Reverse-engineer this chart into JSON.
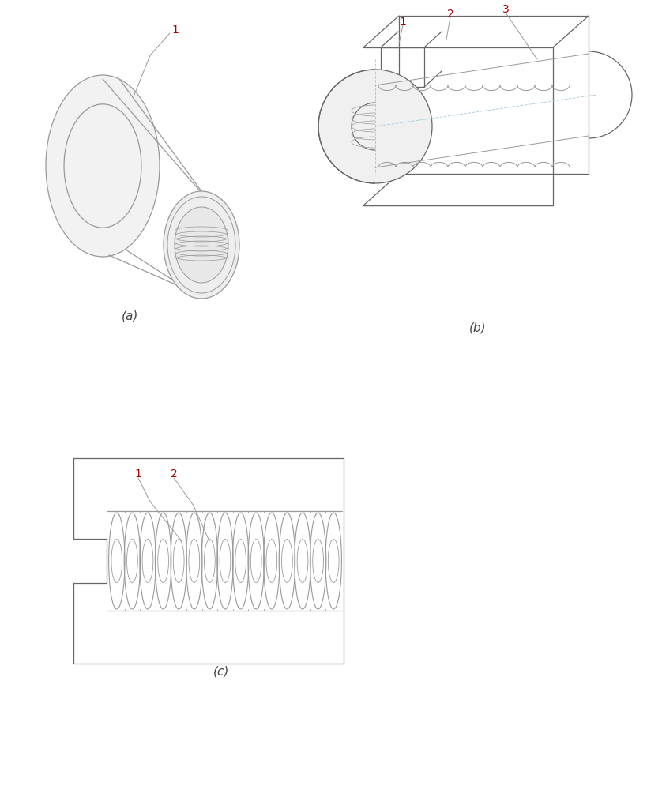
{
  "background_color": "#ffffff",
  "line_color": "#999999",
  "line_color_dark": "#666666",
  "label_color_red": "#aa0000",
  "fig_width": 8.19,
  "fig_height": 10.0,
  "label_a": "(a)",
  "label_b": "(b)",
  "label_c": "(c)"
}
